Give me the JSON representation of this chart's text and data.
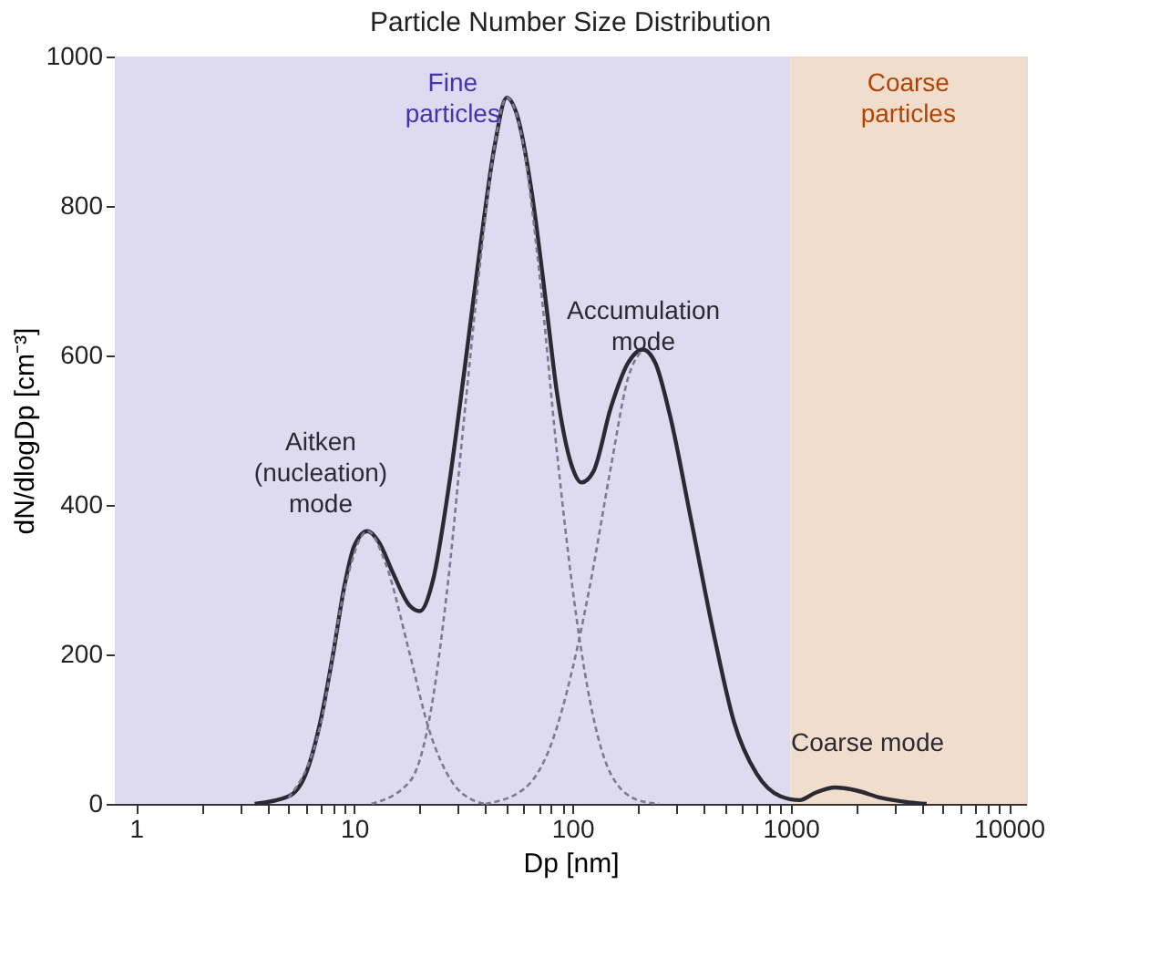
{
  "chart_data": {
    "type": "line",
    "title": "Particle Number Size Distribution",
    "xlabel": "Dp [nm]",
    "ylabel": "dN/dlogDp [cm⁻³]",
    "log": "x",
    "xlim": [
      0.8,
      12000
    ],
    "ylim": [
      0,
      1000
    ],
    "xticks": [
      {
        "value": 1,
        "label": "1"
      },
      {
        "value": 2,
        "label": null
      },
      {
        "value": 3,
        "label": null
      },
      {
        "value": 4,
        "label": null
      },
      {
        "value": 5,
        "label": null
      },
      {
        "value": 6,
        "label": null
      },
      {
        "value": 7,
        "label": null
      },
      {
        "value": 8,
        "label": null
      },
      {
        "value": 9,
        "label": null
      },
      {
        "value": 10,
        "label": "10"
      },
      {
        "value": 20,
        "label": null
      },
      {
        "value": 30,
        "label": null
      },
      {
        "value": 40,
        "label": null
      },
      {
        "value": 50,
        "label": null
      },
      {
        "value": 60,
        "label": null
      },
      {
        "value": 70,
        "label": null
      },
      {
        "value": 80,
        "label": null
      },
      {
        "value": 90,
        "label": null
      },
      {
        "value": 100,
        "label": "100"
      },
      {
        "value": 200,
        "label": null
      },
      {
        "value": 300,
        "label": null
      },
      {
        "value": 400,
        "label": null
      },
      {
        "value": 500,
        "label": null
      },
      {
        "value": 600,
        "label": null
      },
      {
        "value": 700,
        "label": null
      },
      {
        "value": 800,
        "label": null
      },
      {
        "value": 900,
        "label": null
      },
      {
        "value": 1000,
        "label": "1000"
      },
      {
        "value": 2000,
        "label": null
      },
      {
        "value": 3000,
        "label": null
      },
      {
        "value": 4000,
        "label": null
      },
      {
        "value": 5000,
        "label": null
      },
      {
        "value": 6000,
        "label": null
      },
      {
        "value": 7000,
        "label": null
      },
      {
        "value": 8000,
        "label": null
      },
      {
        "value": 9000,
        "label": null
      },
      {
        "value": 10000,
        "label": "10000"
      }
    ],
    "yticks": [
      0,
      200,
      400,
      600,
      800,
      1000
    ],
    "grid": false,
    "series": [
      {
        "color": "#2a2a33",
        "line_style": "solid",
        "x": [
          3.5,
          5,
          6,
          7,
          8,
          9,
          10,
          11.5,
          13,
          15,
          18,
          20,
          23,
          27,
          32,
          38,
          44,
          50,
          56,
          65,
          75,
          85,
          100,
          110,
          125,
          150,
          180,
          210,
          240,
          280,
          350,
          450,
          550,
          700,
          900,
          1100,
          1300,
          1600,
          2000,
          2600,
          3500,
          4200
        ],
        "values": [
          0,
          10,
          40,
          110,
          200,
          290,
          345,
          365,
          350,
          310,
          265,
          258,
          300,
          420,
          580,
          750,
          880,
          945,
          920,
          820,
          680,
          550,
          450,
          430,
          445,
          530,
          590,
          608,
          590,
          520,
          380,
          220,
          110,
          40,
          10,
          5,
          15,
          22,
          18,
          8,
          2,
          0
        ]
      },
      {
        "color": "#7a7a90",
        "line_style": "dashed",
        "x": [
          5,
          7,
          9,
          11.5,
          14,
          18,
          22,
          28,
          35,
          40
        ],
        "values": [
          8,
          105,
          285,
          365,
          320,
          200,
          100,
          30,
          5,
          0
        ]
      },
      {
        "color": "#7a7a90",
        "line_style": "dashed",
        "x": [
          12,
          18,
          22,
          27,
          32,
          38,
          44,
          50,
          58,
          70,
          85,
          100,
          120,
          150,
          200,
          250
        ],
        "values": [
          0,
          30,
          110,
          300,
          520,
          730,
          880,
          945,
          900,
          720,
          470,
          290,
          140,
          40,
          5,
          0
        ]
      },
      {
        "color": "#7a7a90",
        "line_style": "dashed",
        "x": [
          40,
          60,
          80,
          100,
          120,
          150,
          180,
          210
        ],
        "values": [
          0,
          20,
          80,
          180,
          290,
          450,
          570,
          608
        ]
      }
    ],
    "bands": [
      {
        "axis": "x",
        "from": 0.8,
        "to": 1000,
        "label": "Fine particles",
        "color": "#dedaf0"
      },
      {
        "axis": "x",
        "from": 1000,
        "to": 12000,
        "label": "Coarse particles",
        "color": "#f0ddcc"
      }
    ],
    "annotations": [
      "Aitken (nucleation) mode",
      "Accumulation mode",
      "Coarse mode"
    ]
  }
}
